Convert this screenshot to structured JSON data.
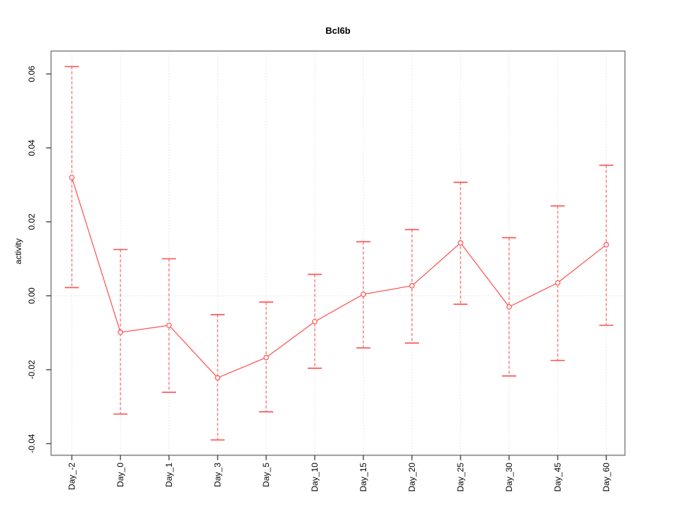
{
  "chart_data": {
    "type": "line",
    "title": "Bcl6b",
    "xlabel": "",
    "ylabel": "activity",
    "categories": [
      "Day_-2",
      "Day_0",
      "Day_1",
      "Day_3",
      "Day_5",
      "Day_10",
      "Day_15",
      "Day_20",
      "Day_25",
      "Day_30",
      "Day_45",
      "Day_60"
    ],
    "series": [
      {
        "name": "activity",
        "values": [
          0.032,
          -0.0099,
          -0.008,
          -0.0222,
          -0.0167,
          -0.007,
          0.0004,
          0.0027,
          0.0143,
          -0.003,
          0.0035,
          0.0138
        ],
        "err_upper": [
          0.062,
          0.0125,
          0.01,
          -0.0051,
          -0.0017,
          0.0058,
          0.0146,
          0.0179,
          0.0307,
          0.0157,
          0.0243,
          0.0353
        ],
        "err_lower": [
          0.0022,
          -0.032,
          -0.0261,
          -0.039,
          -0.0314,
          -0.0196,
          -0.0141,
          -0.0128,
          -0.0023,
          -0.0217,
          -0.0175,
          -0.008
        ]
      }
    ],
    "yticks": [
      -0.04,
      -0.02,
      0.0,
      0.02,
      0.04,
      0.06
    ],
    "ytick_labels": [
      "-0.04",
      "-0.02",
      "0.00",
      "0.02",
      "0.04",
      "0.06"
    ],
    "ylim": [
      -0.0432,
      0.0661
    ],
    "legend_position": "none",
    "grid": {
      "vertical_at_each_category": true,
      "horizontal_at_zero": true,
      "style": "dotted"
    },
    "point_marker": "open-circle",
    "errorbar_style": "dashed-vertical-with-solid-caps",
    "colors": {
      "series": "#ff4d4d",
      "grid": "#cfcfcf",
      "box": "#848484",
      "tick": "#444444",
      "text": "#000000",
      "background": "#ffffff"
    }
  }
}
